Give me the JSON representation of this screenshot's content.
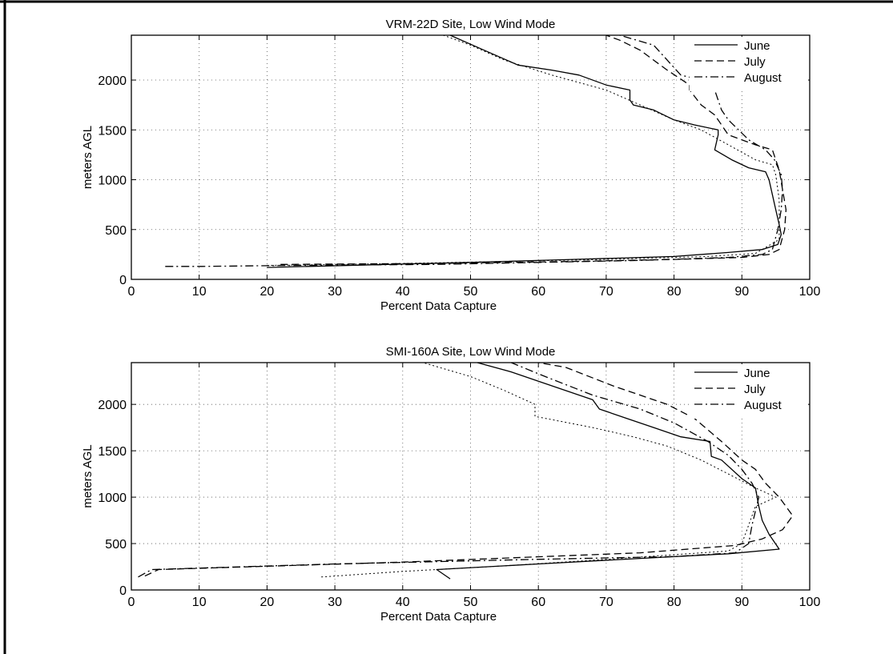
{
  "chart_data": [
    {
      "type": "line",
      "title": "VRM-22D Site, Low Wind Mode",
      "xlabel": "Percent Data Capture",
      "ylabel": "meters AGL",
      "xlim": [
        0,
        100
      ],
      "ylim": [
        0,
        2450
      ],
      "xticks": [
        0,
        10,
        20,
        30,
        40,
        50,
        60,
        70,
        80,
        90,
        100
      ],
      "yticks": [
        0,
        500,
        1000,
        1500,
        2000
      ],
      "grid": true,
      "legend_position": "top-right",
      "series": [
        {
          "name": "June",
          "style": "solid",
          "points": [
            [
              20,
              120
            ],
            [
              50,
              170
            ],
            [
              65,
              200
            ],
            [
              80,
              230
            ],
            [
              88,
              270
            ],
            [
              93,
              300
            ],
            [
              95.3,
              350
            ],
            [
              95.8,
              450
            ],
            [
              95.5,
              550
            ],
            [
              95,
              700
            ],
            [
              94.5,
              850
            ],
            [
              94,
              1000
            ],
            [
              93.5,
              1080
            ],
            [
              91,
              1120
            ],
            [
              88.5,
              1200
            ],
            [
              86,
              1300
            ],
            [
              86.5,
              1450
            ],
            [
              86.5,
              1500
            ],
            [
              83,
              1550
            ],
            [
              80,
              1600
            ],
            [
              77,
              1700
            ],
            [
              74,
              1750
            ],
            [
              73.5,
              1800
            ],
            [
              73.5,
              1900
            ],
            [
              70,
              1950
            ],
            [
              66,
              2050
            ],
            [
              62,
              2100
            ],
            [
              57,
              2150
            ],
            [
              52,
              2300
            ],
            [
              47,
              2450
            ]
          ]
        },
        {
          "name": "July",
          "style": "dashed",
          "points": [
            [
              22,
              150
            ],
            [
              45,
              160
            ],
            [
              65,
              180
            ],
            [
              80,
              200
            ],
            [
              90,
              220
            ],
            [
              94,
              250
            ],
            [
              95.5,
              300
            ],
            [
              96.3,
              500
            ],
            [
              96.5,
              700
            ],
            [
              96,
              900
            ],
            [
              95.5,
              1100
            ],
            [
              95,
              1200
            ],
            [
              94.5,
              1300
            ],
            [
              92,
              1350
            ],
            [
              88,
              1450
            ],
            [
              86,
              1650
            ],
            [
              84,
              1750
            ],
            [
              82.3,
              1900
            ],
            [
              82.3,
              1950
            ],
            [
              79,
              2100
            ],
            [
              75,
              2300
            ],
            [
              72,
              2400
            ],
            [
              70,
              2450
            ]
          ]
        },
        {
          "name": "August",
          "style": "dashdot",
          "points": [
            [
              5,
              130
            ],
            [
              10.5,
              130
            ],
            [
              23,
              140
            ],
            [
              45,
              150
            ],
            [
              60,
              170
            ],
            [
              75,
              190
            ],
            [
              88,
              220
            ],
            [
              93,
              250
            ],
            [
              94.5,
              300
            ],
            [
              95.3,
              500
            ],
            [
              95.8,
              700
            ],
            [
              96,
              900
            ],
            [
              95.8,
              1050
            ],
            [
              94.8,
              1200
            ],
            [
              93.5,
              1300
            ],
            [
              91,
              1400
            ],
            [
              88,
              1600
            ],
            [
              87,
              1700
            ],
            [
              86,
              1900
            ],
            [
              84,
              2000
            ],
            [
              81,
              2050
            ],
            [
              79,
              2200
            ],
            [
              77,
              2350
            ],
            [
              72,
              2450
            ]
          ]
        },
        {
          "name": "",
          "style": "dotted",
          "points": [
            [
              20,
              140
            ],
            [
              40,
              160
            ],
            [
              55,
              180
            ],
            [
              70,
              200
            ],
            [
              85,
              230
            ],
            [
              92,
              260
            ],
            [
              95.5,
              400
            ],
            [
              95.5,
              600
            ],
            [
              95.5,
              800
            ],
            [
              95,
              1050
            ],
            [
              94.5,
              1150
            ],
            [
              92,
              1200
            ],
            [
              88,
              1350
            ],
            [
              84,
              1500
            ],
            [
              80,
              1600
            ],
            [
              75,
              1750
            ],
            [
              70,
              1900
            ],
            [
              62,
              2050
            ],
            [
              55,
              2200
            ],
            [
              50,
              2350
            ],
            [
              46,
              2450
            ]
          ]
        }
      ]
    },
    {
      "type": "line",
      "title": "SMI-160A Site, Low Wind Mode",
      "xlabel": "Percent Data Capture",
      "ylabel": "meters AGL",
      "xlim": [
        0,
        100
      ],
      "ylim": [
        0,
        2450
      ],
      "xticks": [
        0,
        10,
        20,
        30,
        40,
        50,
        60,
        70,
        80,
        90,
        100
      ],
      "yticks": [
        0,
        500,
        1000,
        1500,
        2000
      ],
      "grid": true,
      "legend_position": "top-right",
      "series": [
        {
          "name": "June",
          "style": "solid",
          "points": [
            [
              47,
              120
            ],
            [
              45,
              220
            ],
            [
              60,
              280
            ],
            [
              75,
              340
            ],
            [
              88,
              390
            ],
            [
              95.5,
              440
            ],
            [
              94,
              600
            ],
            [
              93,
              750
            ],
            [
              92.5,
              900
            ],
            [
              92,
              1100
            ],
            [
              90,
              1200
            ],
            [
              87,
              1400
            ],
            [
              85.5,
              1440
            ],
            [
              85.3,
              1600
            ],
            [
              81,
              1650
            ],
            [
              77,
              1750
            ],
            [
              73,
              1850
            ],
            [
              69,
              1950
            ],
            [
              68,
              2050
            ],
            [
              62,
              2200
            ],
            [
              56,
              2350
            ],
            [
              51,
              2450
            ]
          ]
        },
        {
          "name": "July",
          "style": "dashed",
          "points": [
            [
              2,
              150
            ],
            [
              4,
              220
            ],
            [
              40,
              300
            ],
            [
              75,
              400
            ],
            [
              89,
              480
            ],
            [
              93,
              550
            ],
            [
              96,
              650
            ],
            [
              97.5,
              800
            ],
            [
              95.5,
              1000
            ],
            [
              93.5,
              1150
            ],
            [
              92,
              1300
            ],
            [
              90,
              1400
            ],
            [
              87,
              1600
            ],
            [
              83,
              1850
            ],
            [
              79,
              2000
            ],
            [
              71,
              2200
            ],
            [
              64,
              2400
            ],
            [
              60,
              2450
            ]
          ]
        },
        {
          "name": "August",
          "style": "dashdot",
          "points": [
            [
              1,
              140
            ],
            [
              3,
              220
            ],
            [
              30,
              280
            ],
            [
              60,
              330
            ],
            [
              80,
              360
            ],
            [
              89,
              400
            ],
            [
              91,
              500
            ],
            [
              91.5,
              700
            ],
            [
              92.5,
              1000
            ],
            [
              91.5,
              1150
            ],
            [
              90,
              1300
            ],
            [
              88,
              1450
            ],
            [
              85,
              1600
            ],
            [
              80,
              1800
            ],
            [
              75,
              1950
            ],
            [
              68,
              2100
            ],
            [
              61,
              2300
            ],
            [
              56,
              2450
            ]
          ]
        },
        {
          "name": "",
          "style": "dotted",
          "points": [
            [
              28,
              140
            ],
            [
              40,
              200
            ],
            [
              55,
              260
            ],
            [
              70,
              330
            ],
            [
              80,
              380
            ],
            [
              88,
              420
            ],
            [
              90,
              500
            ],
            [
              91,
              700
            ],
            [
              92,
              900
            ],
            [
              95,
              1000
            ],
            [
              92,
              1100
            ],
            [
              88,
              1250
            ],
            [
              84,
              1400
            ],
            [
              79,
              1550
            ],
            [
              74,
              1650
            ],
            [
              68,
              1750
            ],
            [
              61,
              1850
            ],
            [
              59.5,
              1870
            ],
            [
              59.5,
              2000
            ],
            [
              55,
              2150
            ],
            [
              50,
              2300
            ],
            [
              43,
              2450
            ]
          ]
        }
      ]
    }
  ]
}
